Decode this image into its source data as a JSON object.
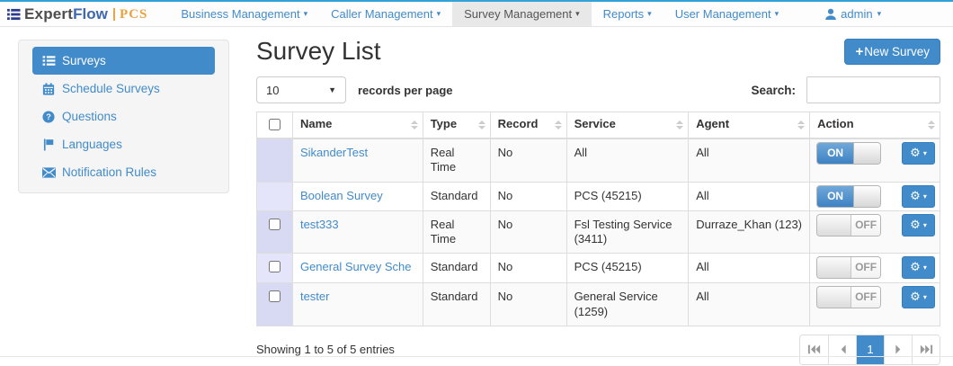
{
  "navbar": {
    "brand": {
      "word1": "Expert",
      "word2": "Flow",
      "separator": "|",
      "product": "PCS"
    },
    "items": [
      {
        "label": "Business Management",
        "active": false
      },
      {
        "label": "Caller Management",
        "active": false
      },
      {
        "label": "Survey Management",
        "active": true
      },
      {
        "label": "Reports",
        "active": false
      },
      {
        "label": "User Management",
        "active": false
      }
    ],
    "user": {
      "label": "admin",
      "icon": "user-icon"
    }
  },
  "sidebar": {
    "items": [
      {
        "icon": "list-icon",
        "label": "Surveys",
        "active": true
      },
      {
        "icon": "calendar-icon",
        "label": "Schedule Surveys",
        "active": false
      },
      {
        "icon": "question-icon",
        "label": "Questions",
        "active": false
      },
      {
        "icon": "flag-icon",
        "label": "Languages",
        "active": false
      },
      {
        "icon": "envelope-icon",
        "label": "Notification Rules",
        "active": false
      }
    ]
  },
  "main": {
    "title": "Survey List",
    "new_survey": {
      "plus": "+",
      "label": "New Survey"
    },
    "records_control": {
      "value": "10",
      "label": "records per page"
    },
    "search": {
      "label": "Search:",
      "value": ""
    },
    "table": {
      "columns": [
        {
          "label": "",
          "sortable": false,
          "has_checkbox": true
        },
        {
          "label": "Name",
          "sortable": true
        },
        {
          "label": "Type",
          "sortable": true
        },
        {
          "label": "Record",
          "sortable": true
        },
        {
          "label": "Service",
          "sortable": true
        },
        {
          "label": "Agent",
          "sortable": true
        },
        {
          "label": "Action",
          "sortable": true
        }
      ],
      "rows": [
        {
          "has_checkbox": false,
          "checked": false,
          "name": "SikanderTest",
          "type": "Real Time",
          "record": "No",
          "service": "All",
          "agent": "All",
          "toggle": "ON"
        },
        {
          "has_checkbox": false,
          "checked": false,
          "name": "Boolean Survey",
          "type": "Standard",
          "record": "No",
          "service": "PCS (45215)",
          "agent": "All",
          "toggle": "ON"
        },
        {
          "has_checkbox": true,
          "checked": false,
          "name": "test333",
          "type": "Real Time",
          "record": "No",
          "service": "Fsl Testing Service (3411)",
          "agent": "Durraze_Khan (123)",
          "toggle": "OFF"
        },
        {
          "has_checkbox": true,
          "checked": false,
          "name": "General Survey Sche",
          "type": "Standard",
          "record": "No",
          "service": "PCS (45215)",
          "agent": "All",
          "toggle": "OFF"
        },
        {
          "has_checkbox": true,
          "checked": false,
          "name": "tester",
          "type": "Standard",
          "record": "No",
          "service": "General Service (1259)",
          "agent": "All",
          "toggle": "OFF"
        }
      ]
    },
    "footer": {
      "showing_text": "Showing 1 to 5 of 5 entries",
      "pagination": {
        "current_page": "1"
      }
    }
  },
  "colors": {
    "accent": "#428bca",
    "brand_navy": "#2b3c8f",
    "brand_gold": "#e8a33d",
    "nav_top_border": "#35a1d9",
    "toggle_off_text": "#9a9a9a",
    "checkbox_col_odd": "#d8daf4",
    "checkbox_col_even": "#e4e5fa",
    "table_border": "#dddddd"
  }
}
